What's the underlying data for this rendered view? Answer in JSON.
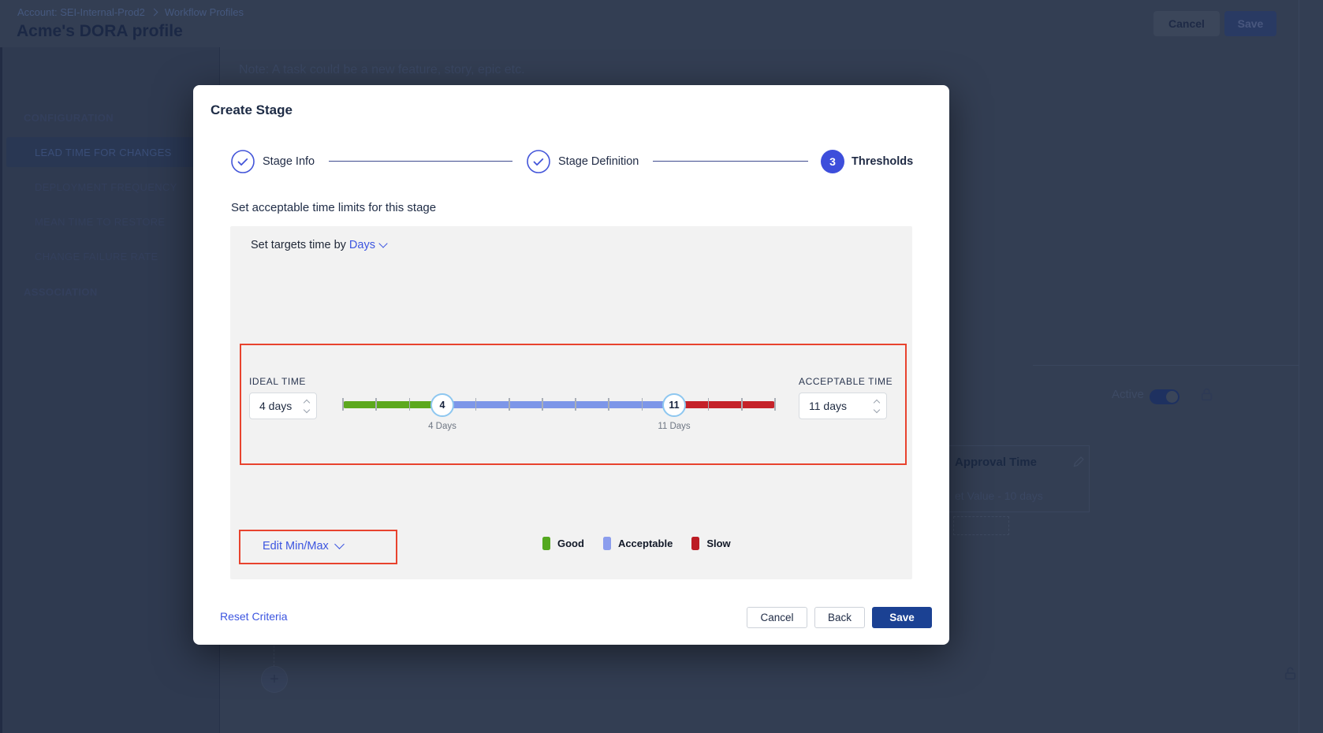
{
  "page": {
    "breadcrumb": {
      "account": "Account: SEI-Internal-Prod2",
      "section": "Workflow Profiles"
    },
    "title": "Acme's DORA profile",
    "header": {
      "cancel": "Cancel",
      "save": "Save"
    },
    "note": "Note: A task could be a new feature, story, epic etc.",
    "sidebar": {
      "sections": [
        {
          "label": "CONFIGURATION",
          "items": [
            {
              "label": "LEAD TIME FOR CHANGES",
              "selected": true
            },
            {
              "label": "DEPLOYMENT FREQUENCY",
              "selected": false
            },
            {
              "label": "MEAN TIME TO RESTORE",
              "selected": false
            },
            {
              "label": "CHANGE FAILURE RATE",
              "selected": false
            }
          ]
        },
        {
          "label": "ASSOCIATION",
          "items": []
        }
      ]
    },
    "background_card": {
      "active_label": "Active",
      "approval_title": "Approval Time",
      "approval_subtitle": "et Value - 10 days"
    }
  },
  "modal": {
    "title": "Create Stage",
    "steps": [
      {
        "label": "Stage Info",
        "state": "done"
      },
      {
        "label": "Stage Definition",
        "state": "done"
      },
      {
        "label": "Thresholds",
        "state": "active",
        "number": "3"
      }
    ],
    "section_title": "Set acceptable time limits for this stage",
    "target_prefix": "Set targets time by",
    "target_unit": "Days",
    "ideal": {
      "label": "IDEAL TIME",
      "value": "4 days"
    },
    "acceptable": {
      "label": "ACCEPTABLE TIME",
      "value": "11 days"
    },
    "slider": {
      "handle_min_value": "4",
      "handle_min_label": "4 Days",
      "handle_max_value": "11",
      "handle_max_label": "11 Days",
      "range_min": 1,
      "range_max": 14
    },
    "edit_minmax": "Edit Min/Max",
    "legend": [
      {
        "label": "Good",
        "color": "#54A81F"
      },
      {
        "label": "Acceptable",
        "color": "#8B9DED"
      },
      {
        "label": "Slow",
        "color": "#BC1C24"
      }
    ],
    "footer": {
      "reset": "Reset Criteria",
      "cancel": "Cancel",
      "back": "Back",
      "save": "Save"
    }
  },
  "colors": {
    "accent_blue": "#3C55E0",
    "stepper_blue": "#3D4EDB",
    "track_good": "#5CA81E",
    "track_acceptable": "#7D96E8",
    "track_slow": "#C5222A",
    "highlight_red": "#E8432E",
    "save_button": "#1B4193"
  }
}
